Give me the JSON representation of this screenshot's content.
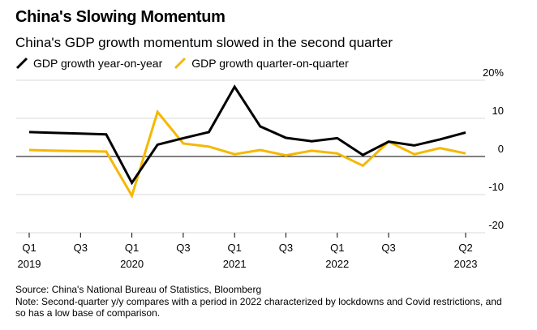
{
  "title": "China's Slowing Momentum",
  "subtitle": "China's GDP growth momentum slowed in the second quarter",
  "source": "Source: China's National Bureau of Statistics, Bloomberg",
  "note": "Note: Second-quarter y/y compares with a period in 2022 characterized by lockdowns and Covid restrictions, and so has a low base of comparison.",
  "chart_data": {
    "type": "line",
    "title": "China's Slowing Momentum",
    "subtitle": "China's GDP growth momentum slowed in the second quarter",
    "ylabel": "%",
    "ylim": [
      -20,
      20
    ],
    "y_ticks": [
      {
        "value": 20,
        "label": "20%"
      },
      {
        "value": 10,
        "label": "10"
      },
      {
        "value": 0,
        "label": "0"
      },
      {
        "value": -10,
        "label": "-10"
      },
      {
        "value": -20,
        "label": "-20"
      }
    ],
    "x": [
      "2019Q1",
      "2019Q2",
      "2019Q3",
      "2019Q4",
      "2020Q1",
      "2020Q2",
      "2020Q3",
      "2020Q4",
      "2021Q1",
      "2021Q2",
      "2021Q3",
      "2021Q4",
      "2022Q1",
      "2022Q2",
      "2022Q3",
      "2022Q4",
      "2023Q1",
      "2023Q2"
    ],
    "x_ticks": [
      {
        "index": 0,
        "line1": "Q1",
        "line2": "2019"
      },
      {
        "index": 2,
        "line1": "Q3",
        "line2": ""
      },
      {
        "index": 4,
        "line1": "Q1",
        "line2": "2020"
      },
      {
        "index": 6,
        "line1": "Q3",
        "line2": ""
      },
      {
        "index": 8,
        "line1": "Q1",
        "line2": "2021"
      },
      {
        "index": 10,
        "line1": "Q3",
        "line2": ""
      },
      {
        "index": 12,
        "line1": "Q1",
        "line2": "2022"
      },
      {
        "index": 14,
        "line1": "Q3",
        "line2": ""
      },
      {
        "index": 17,
        "line1": "Q2",
        "line2": "2023"
      }
    ],
    "series": [
      {
        "name": "GDP growth year-on-year",
        "color": "#000000",
        "values": [
          6.4,
          6.2,
          6.0,
          5.8,
          -6.9,
          3.1,
          4.8,
          6.4,
          18.3,
          7.9,
          4.9,
          4.0,
          4.8,
          0.4,
          3.9,
          2.9,
          4.5,
          6.3
        ]
      },
      {
        "name": "GDP growth quarter-on-quarter",
        "color": "#f5b800",
        "values": [
          1.7,
          1.5,
          1.4,
          1.3,
          -10.3,
          11.7,
          3.4,
          2.6,
          0.6,
          1.7,
          0.3,
          1.5,
          0.8,
          -2.4,
          3.9,
          0.6,
          2.2,
          0.8
        ]
      }
    ],
    "grid": true,
    "legend": "top-left"
  }
}
